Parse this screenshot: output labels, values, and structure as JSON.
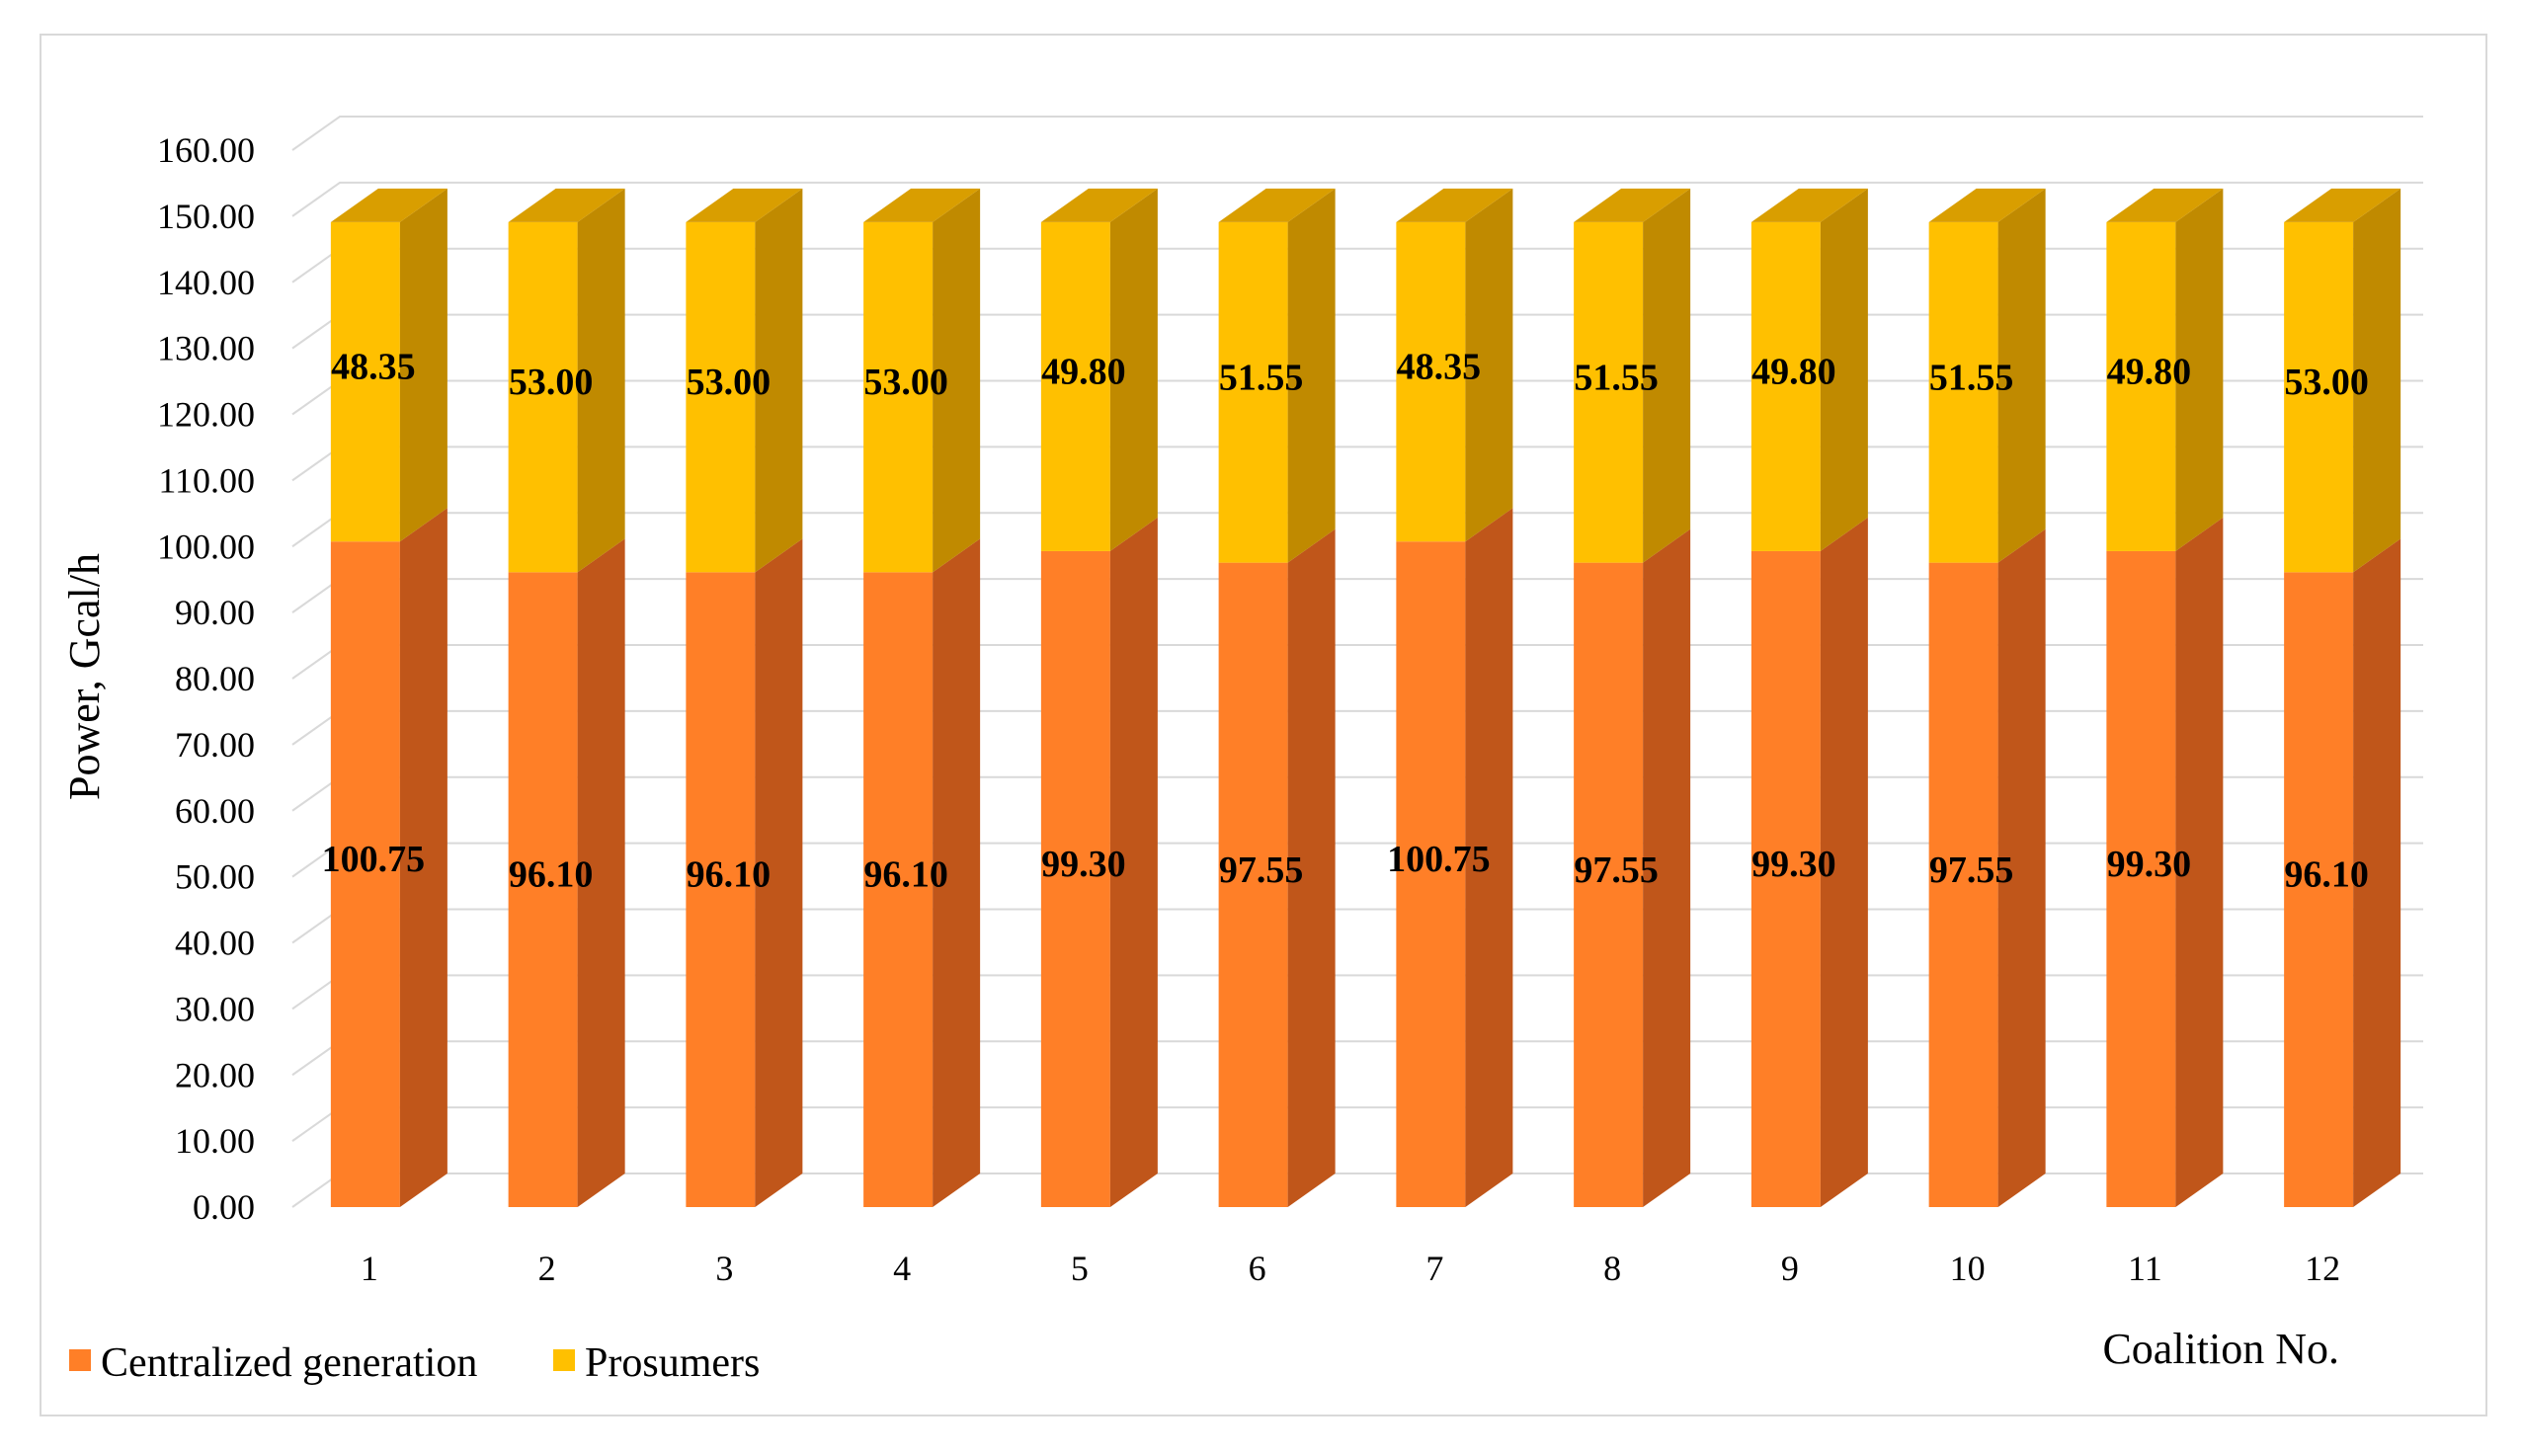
{
  "chart_data": {
    "type": "bar",
    "stacked": true,
    "three_d": true,
    "title": "",
    "xlabel": "Coalition No.",
    "ylabel": "Power, Gcal/h",
    "ylim": [
      0,
      160
    ],
    "ytick_step": 10,
    "ytick_labels": [
      "0.00",
      "10.00",
      "20.00",
      "30.00",
      "40.00",
      "50.00",
      "60.00",
      "70.00",
      "80.00",
      "90.00",
      "100.00",
      "110.00",
      "120.00",
      "130.00",
      "140.00",
      "150.00",
      "160.00"
    ],
    "categories": [
      "1",
      "2",
      "3",
      "4",
      "5",
      "6",
      "7",
      "8",
      "9",
      "10",
      "11",
      "12"
    ],
    "grid": true,
    "legend_position": "bottom-left",
    "series": [
      {
        "name": "Centralized generation",
        "color": "#FF7F27",
        "side_color": "#C0561A",
        "top_color": "#E8731F",
        "values": [
          100.75,
          96.1,
          96.1,
          96.1,
          99.3,
          97.55,
          100.75,
          97.55,
          99.3,
          97.55,
          99.3,
          96.1
        ],
        "labels": [
          "100.75",
          "96.10",
          "96.10",
          "96.10",
          "99.30",
          "97.55",
          "100.75",
          "97.55",
          "99.30",
          "97.55",
          "99.30",
          "96.10"
        ]
      },
      {
        "name": "Prosumers",
        "color": "#FFC000",
        "side_color": "#C08A00",
        "top_color": "#D99E00",
        "values": [
          48.35,
          53.0,
          53.0,
          53.0,
          49.8,
          51.55,
          48.35,
          51.55,
          49.8,
          51.55,
          49.8,
          53.0
        ],
        "labels": [
          "48.35",
          "53.00",
          "53.00",
          "53.00",
          "49.80",
          "51.55",
          "48.35",
          "51.55",
          "49.80",
          "51.55",
          "49.80",
          "53.00"
        ]
      }
    ]
  }
}
